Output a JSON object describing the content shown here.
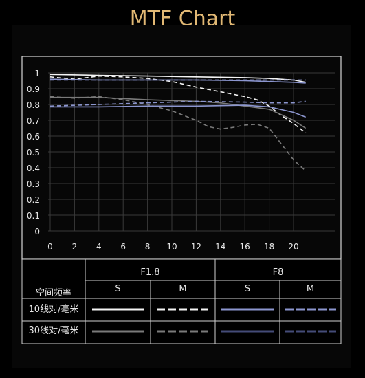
{
  "title": "MTF Chart",
  "colors": {
    "title": "#e1b874",
    "white": "#f4f4f4",
    "blue_light": "#8c96cf",
    "gray": "#7a7a7a",
    "blue_dark": "#444b78"
  },
  "chart_data": {
    "type": "line",
    "title": "MTF Chart",
    "xlabel": "",
    "ylabel": "",
    "xlim": [
      0,
      22
    ],
    "ylim": [
      0,
      1
    ],
    "x_ticks": [
      "0",
      "2",
      "4",
      "6",
      "8",
      "10",
      "12",
      "14",
      "16",
      "18",
      "20"
    ],
    "y_ticks": [
      "0",
      "0.1",
      "0.2",
      "0.3",
      "0.4",
      "0.5",
      "0.6",
      "0.7",
      "0.8",
      "0.9",
      "1"
    ],
    "grid": true,
    "series": [
      {
        "aperture": "F1.8",
        "freq": "10",
        "orient": "S",
        "color": "#f4f4f4",
        "dash": false,
        "x": [
          0,
          4,
          8,
          12,
          16,
          18,
          20,
          21
        ],
        "y": [
          0.99,
          0.985,
          0.98,
          0.975,
          0.97,
          0.965,
          0.955,
          0.94
        ]
      },
      {
        "aperture": "F1.8",
        "freq": "10",
        "orient": "M",
        "color": "#f4f4f4",
        "dash": true,
        "x": [
          0,
          2,
          4,
          6,
          8,
          10,
          12,
          14,
          16,
          17,
          18,
          19,
          20,
          21
        ],
        "y": [
          0.975,
          0.96,
          0.98,
          0.975,
          0.965,
          0.945,
          0.91,
          0.88,
          0.85,
          0.83,
          0.79,
          0.73,
          0.68,
          0.62
        ]
      },
      {
        "aperture": "F1.8",
        "freq": "30",
        "orient": "S",
        "color": "#7a7a7a",
        "dash": false,
        "x": [
          0,
          4,
          8,
          12,
          14,
          16,
          18,
          20,
          21
        ],
        "y": [
          0.845,
          0.845,
          0.83,
          0.82,
          0.81,
          0.79,
          0.77,
          0.7,
          0.65
        ]
      },
      {
        "aperture": "F1.8",
        "freq": "30",
        "orient": "M",
        "color": "#7a7a7a",
        "dash": true,
        "x": [
          0,
          2,
          4,
          6,
          8,
          10,
          12,
          13,
          14,
          15,
          16,
          17,
          18,
          19,
          20,
          21
        ],
        "y": [
          0.85,
          0.84,
          0.85,
          0.83,
          0.8,
          0.76,
          0.7,
          0.66,
          0.645,
          0.655,
          0.67,
          0.675,
          0.65,
          0.55,
          0.45,
          0.38
        ]
      },
      {
        "aperture": "F8",
        "freq": "10",
        "orient": "S",
        "color": "#8c96cf",
        "dash": false,
        "x": [
          0,
          4,
          8,
          12,
          16,
          18,
          20,
          21
        ],
        "y": [
          0.96,
          0.955,
          0.955,
          0.955,
          0.95,
          0.945,
          0.94,
          0.935
        ]
      },
      {
        "aperture": "F8",
        "freq": "10",
        "orient": "M",
        "color": "#8c96cf",
        "dash": true,
        "x": [
          0,
          4,
          8,
          12,
          16,
          18,
          20,
          21
        ],
        "y": [
          0.955,
          0.955,
          0.955,
          0.955,
          0.955,
          0.955,
          0.955,
          0.955
        ]
      },
      {
        "aperture": "F8",
        "freq": "30",
        "orient": "S",
        "color": "#8c96cf",
        "dash": false,
        "x": [
          0,
          4,
          8,
          12,
          16,
          18,
          20,
          21
        ],
        "y": [
          0.785,
          0.785,
          0.79,
          0.79,
          0.795,
          0.785,
          0.75,
          0.72
        ]
      },
      {
        "aperture": "F8",
        "freq": "30",
        "orient": "M",
        "color": "#8c96cf",
        "dash": true,
        "x": [
          0,
          4,
          8,
          12,
          16,
          18,
          20,
          21
        ],
        "y": [
          0.79,
          0.8,
          0.81,
          0.82,
          0.815,
          0.81,
          0.81,
          0.82
        ]
      }
    ]
  },
  "legend": {
    "header_freq": "空间频率",
    "apertures": [
      "F1.8",
      "F8"
    ],
    "orient_s": "S",
    "orient_m": "M",
    "row_10": "10线对/毫米",
    "row_30": "30线对/毫米"
  }
}
